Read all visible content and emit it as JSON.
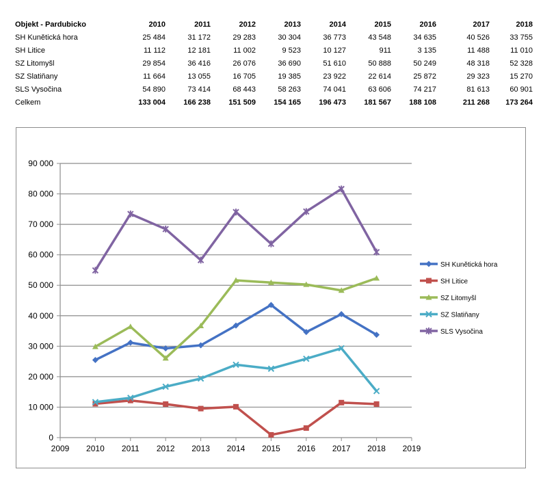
{
  "table": {
    "header_label": "Objekt  - Pardubicko",
    "years": [
      "2010",
      "2011",
      "2012",
      "2013",
      "2014",
      "2015",
      "2016",
      "2017",
      "2018"
    ],
    "rows": [
      {
        "name": "SH Kunětická hora",
        "values": [
          "25 484",
          "31 172",
          "29 283",
          "30 304",
          "36 773",
          "43 548",
          "34 635",
          "40 526",
          "33 755"
        ]
      },
      {
        "name": "SH Litice",
        "values": [
          "11 112",
          "12 181",
          "11 002",
          "9 523",
          "10 127",
          "911",
          "3 135",
          "11 488",
          "11 010"
        ]
      },
      {
        "name": "SZ Litomyšl",
        "values": [
          "29 854",
          "36 416",
          "26 076",
          "36 690",
          "51 610",
          "50 888",
          "50 249",
          "48 318",
          "52 328"
        ]
      },
      {
        "name": "SZ Slatiňany",
        "values": [
          "11 664",
          "13 055",
          "16 705",
          "19 385",
          "23 922",
          "22 614",
          "25 872",
          "29 323",
          "15 270"
        ]
      },
      {
        "name": "SLS Vysočina",
        "values": [
          "54 890",
          "73 414",
          "68 443",
          "58 263",
          "74 041",
          "63 606",
          "74 217",
          "81 613",
          "60 901"
        ]
      }
    ],
    "total": {
      "name": "Celkem",
      "values": [
        "133 004",
        "166 238",
        "151 509",
        "154 165",
        "196 473",
        "181 567",
        "188 108",
        "211 268",
        "173 264"
      ]
    }
  },
  "chart_data": {
    "type": "line",
    "title": "",
    "xlabel": "",
    "ylabel": "",
    "xlim": [
      2009,
      2019
    ],
    "ylim": [
      0,
      90000
    ],
    "x_ticks": [
      "2009",
      "2010",
      "2011",
      "2012",
      "2013",
      "2014",
      "2015",
      "2016",
      "2017",
      "2018",
      "2019"
    ],
    "y_ticks": [
      "0",
      "10 000",
      "20 000",
      "30 000",
      "40 000",
      "50 000",
      "60 000",
      "70 000",
      "80 000",
      "90 000"
    ],
    "y_tick_values": [
      0,
      10000,
      20000,
      30000,
      40000,
      50000,
      60000,
      70000,
      80000,
      90000
    ],
    "grid": "horizontal",
    "legend_position": "right",
    "x": [
      2010,
      2011,
      2012,
      2013,
      2014,
      2015,
      2016,
      2017,
      2018
    ],
    "series": [
      {
        "name": "SH Kunětická hora",
        "color": "#4472c4",
        "marker": "diamond",
        "values": [
          25484,
          31172,
          29283,
          30304,
          36773,
          43548,
          34635,
          40526,
          33755
        ]
      },
      {
        "name": "SH Litice",
        "color": "#c0504d",
        "marker": "square",
        "values": [
          11112,
          12181,
          11002,
          9523,
          10127,
          911,
          3135,
          11488,
          11010
        ]
      },
      {
        "name": "SZ Litomyšl",
        "color": "#9bbb59",
        "marker": "triangle",
        "values": [
          29854,
          36416,
          26076,
          36690,
          51610,
          50888,
          50249,
          48318,
          52328
        ]
      },
      {
        "name": "SZ Slatiňany",
        "color": "#4bacc6",
        "marker": "x",
        "values": [
          11664,
          13055,
          16705,
          19385,
          23922,
          22614,
          25872,
          29323,
          15270
        ]
      },
      {
        "name": "SLS Vysočina",
        "color": "#8064a2",
        "marker": "star",
        "values": [
          54890,
          73414,
          68443,
          58263,
          74041,
          63606,
          74217,
          81613,
          60901
        ]
      }
    ]
  }
}
